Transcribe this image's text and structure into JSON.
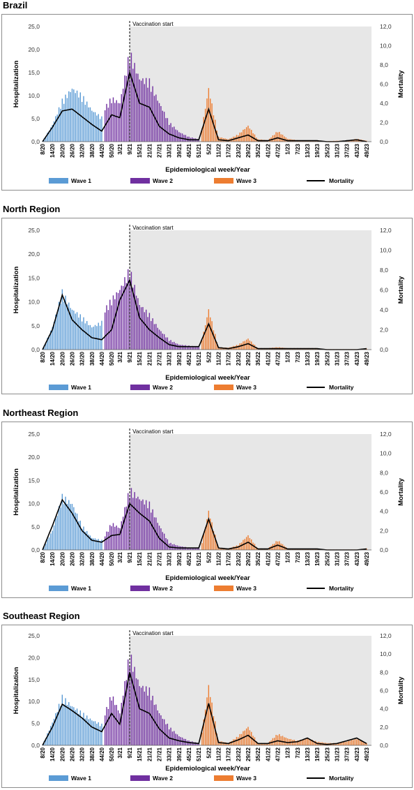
{
  "colors": {
    "wave1": "#5b9bd5",
    "wave2": "#7030a0",
    "wave3": "#ed7d31",
    "mortality": "#000000",
    "shade": "#e7e7e7"
  },
  "common": {
    "xlabel": "Epidemiological week/Year",
    "ylabel_left": "Hospitalization",
    "ylabel_right": "Mortality",
    "annotation": "Vaccination start",
    "legend": [
      "Wave 1",
      "Wave 2",
      "Wave 3",
      "Mortality"
    ],
    "x_ticks": [
      "8/20",
      "14/20",
      "20/20",
      "26/20",
      "32/20",
      "38/20",
      "44/20",
      "50/20",
      "3/21",
      "9/21",
      "15/21",
      "21/21",
      "27/21",
      "33/21",
      "39/21",
      "45/21",
      "51/21",
      "5/22",
      "11/22",
      "17/22",
      "23/22",
      "29/22",
      "35/22",
      "41/22",
      "47/22",
      "1/23",
      "7/23",
      "13/23",
      "19/23",
      "25/23",
      "31/23",
      "37/23",
      "43/23",
      "49/23"
    ],
    "y_ticks_left": [
      "0,0",
      "5,0",
      "10,0",
      "15,0",
      "20,0",
      "25,0"
    ],
    "y_ticks_right": [
      "0,0",
      "2,0",
      "4,0",
      "6,0",
      "8,0",
      "10,0",
      "12,0"
    ]
  },
  "chart_data": [
    {
      "type": "bar",
      "title": "Brazil",
      "xlabel": "Epidemiological week/Year",
      "ylabel": "Hospitalization",
      "ylabel_right": "Mortality",
      "ylim": [
        0,
        25
      ],
      "ylim_right": [
        0,
        12
      ],
      "x_range": [
        "8/20",
        "52/23"
      ],
      "vaccination_start": "9/21",
      "series": [
        {
          "name": "Wave 1",
          "type": "bar",
          "weeks": [
            "8/20",
            "14/20",
            "20/20",
            "26/20",
            "32/20",
            "38/20",
            "44/20"
          ],
          "values": [
            0.1,
            3.5,
            8.5,
            11.0,
            9.5,
            6.5,
            5.0
          ]
        },
        {
          "name": "Wave 2",
          "type": "bar",
          "weeks": [
            "46/20",
            "50/20",
            "3/21",
            "9/21",
            "15/21",
            "21/21",
            "27/21",
            "33/21",
            "39/21",
            "45/21",
            "51/21"
          ],
          "values": [
            7.0,
            9.0,
            8.0,
            18.5,
            13.0,
            12.5,
            8.0,
            4.0,
            2.0,
            1.0,
            0.5
          ]
        },
        {
          "name": "Wave 3",
          "type": "bar",
          "weeks": [
            "1/22",
            "5/22",
            "11/22",
            "17/22",
            "23/22",
            "29/22",
            "35/22",
            "41/22",
            "47/22",
            "1/23",
            "7/23",
            "13/23",
            "19/23",
            "25/23",
            "31/23",
            "37/23",
            "43/23",
            "49/23"
          ],
          "values": [
            3.0,
            11.0,
            1.0,
            0.5,
            1.5,
            3.3,
            0.5,
            0.3,
            2.2,
            0.6,
            0.3,
            0.2,
            0.3,
            0.1,
            0.2,
            0.2,
            0.6,
            0.2
          ]
        },
        {
          "name": "Mortality",
          "type": "line",
          "weeks": [
            "8/20",
            "14/20",
            "20/20",
            "26/20",
            "32/20",
            "38/20",
            "44/20",
            "50/20",
            "3/21",
            "9/21",
            "15/21",
            "21/21",
            "27/21",
            "33/21",
            "39/21",
            "45/21",
            "51/21",
            "5/22",
            "11/22",
            "17/22",
            "23/22",
            "29/22",
            "35/22",
            "41/22",
            "47/22",
            "1/23",
            "7/23",
            "13/23",
            "19/23",
            "25/23",
            "31/23",
            "37/23",
            "43/23",
            "49/23"
          ],
          "values": [
            0.0,
            1.5,
            3.2,
            3.4,
            2.6,
            1.8,
            1.1,
            2.8,
            2.5,
            7.2,
            4.0,
            3.6,
            1.6,
            0.8,
            0.4,
            0.2,
            0.2,
            3.4,
            0.2,
            0.1,
            0.4,
            0.7,
            0.1,
            0.1,
            0.4,
            0.1,
            0.1,
            0.1,
            0.1,
            0.0,
            0.0,
            0.1,
            0.2,
            0.0
          ]
        }
      ]
    },
    {
      "type": "bar",
      "title": "North Region",
      "xlabel": "Epidemiological week/Year",
      "ylabel": "Hospitalization",
      "ylabel_right": "Mortality",
      "ylim": [
        0,
        25
      ],
      "ylim_right": [
        0,
        12
      ],
      "x_range": [
        "8/20",
        "52/23"
      ],
      "vaccination_start": "9/21",
      "series": [
        {
          "name": "Wave 1",
          "type": "bar",
          "weeks": [
            "8/20",
            "14/20",
            "20/20",
            "26/20",
            "32/20",
            "38/20",
            "44/20"
          ],
          "values": [
            0.1,
            4.5,
            11.5,
            8.0,
            6.5,
            4.5,
            5.5
          ]
        },
        {
          "name": "Wave 2",
          "type": "bar",
          "weeks": [
            "46/20",
            "50/20",
            "3/21",
            "9/21",
            "15/21",
            "21/21",
            "27/21",
            "33/21",
            "39/21",
            "45/21",
            "51/21"
          ],
          "values": [
            8.0,
            10.0,
            12.0,
            16.0,
            9.0,
            7.0,
            4.0,
            2.0,
            1.0,
            0.8,
            0.5
          ]
        },
        {
          "name": "Wave 3",
          "type": "bar",
          "weeks": [
            "1/22",
            "5/22",
            "11/22",
            "17/22",
            "23/22",
            "29/22",
            "35/22",
            "41/22",
            "47/22",
            "1/23",
            "7/23",
            "13/23",
            "19/23",
            "25/23",
            "31/23",
            "37/23",
            "43/23",
            "49/23"
          ],
          "values": [
            2.0,
            8.0,
            0.5,
            0.4,
            1.0,
            2.2,
            0.3,
            0.3,
            0.5,
            0.3,
            0.3,
            0.3,
            0.3,
            0.1,
            0.1,
            0.1,
            0.1,
            0.2
          ]
        },
        {
          "name": "Mortality",
          "type": "line",
          "weeks": [
            "8/20",
            "14/20",
            "20/20",
            "26/20",
            "32/20",
            "38/20",
            "44/20",
            "50/20",
            "3/21",
            "9/21",
            "15/21",
            "21/21",
            "27/21",
            "33/21",
            "39/21",
            "45/21",
            "51/21",
            "5/22",
            "11/22",
            "17/22",
            "23/22",
            "29/22",
            "35/22",
            "41/22",
            "47/22",
            "1/23",
            "7/23",
            "13/23",
            "19/23",
            "25/23",
            "31/23",
            "37/23",
            "43/23",
            "49/23"
          ],
          "values": [
            0.0,
            2.0,
            5.5,
            3.0,
            2.0,
            1.2,
            1.0,
            2.0,
            5.0,
            7.0,
            3.2,
            2.0,
            1.2,
            0.5,
            0.3,
            0.3,
            0.3,
            2.6,
            0.2,
            0.1,
            0.3,
            0.6,
            0.1,
            0.1,
            0.1,
            0.1,
            0.1,
            0.1,
            0.1,
            0.0,
            0.0,
            0.0,
            0.0,
            0.1
          ]
        }
      ]
    },
    {
      "type": "bar",
      "title": "Northeast Region",
      "xlabel": "Epidemiological week/Year",
      "ylabel": "Hospitalization",
      "ylabel_right": "Mortality",
      "ylim": [
        0,
        25
      ],
      "ylim_right": [
        0,
        12
      ],
      "x_range": [
        "8/20",
        "52/23"
      ],
      "vaccination_start": "9/21",
      "series": [
        {
          "name": "Wave 1",
          "type": "bar",
          "weeks": [
            "8/20",
            "14/20",
            "20/20",
            "26/20",
            "32/20",
            "38/20",
            "44/20"
          ],
          "values": [
            0.1,
            4.0,
            11.0,
            9.5,
            5.0,
            2.5,
            2.0
          ]
        },
        {
          "name": "Wave 2",
          "type": "bar",
          "weeks": [
            "46/20",
            "50/20",
            "3/21",
            "9/21",
            "15/21",
            "21/21",
            "27/21",
            "33/21",
            "39/21",
            "45/21",
            "51/21"
          ],
          "values": [
            3.0,
            5.5,
            4.5,
            12.5,
            10.5,
            9.5,
            5.0,
            1.5,
            0.8,
            0.5,
            0.3
          ]
        },
        {
          "name": "Wave 3",
          "type": "bar",
          "weeks": [
            "1/22",
            "5/22",
            "11/22",
            "17/22",
            "23/22",
            "29/22",
            "35/22",
            "41/22",
            "47/22",
            "1/23",
            "7/23",
            "13/23",
            "19/23",
            "25/23",
            "31/23",
            "37/23",
            "43/23",
            "49/23"
          ],
          "values": [
            1.5,
            8.0,
            0.5,
            0.3,
            1.0,
            3.0,
            0.3,
            0.3,
            2.0,
            0.3,
            0.2,
            0.2,
            0.3,
            0.1,
            0.1,
            0.1,
            0.1,
            0.3
          ]
        },
        {
          "name": "Mortality",
          "type": "line",
          "weeks": [
            "8/20",
            "14/20",
            "20/20",
            "26/20",
            "32/20",
            "38/20",
            "44/20",
            "50/20",
            "3/21",
            "9/21",
            "15/21",
            "21/21",
            "27/21",
            "33/21",
            "39/21",
            "45/21",
            "51/21",
            "5/22",
            "11/22",
            "17/22",
            "23/22",
            "29/22",
            "35/22",
            "41/22",
            "47/22",
            "1/23",
            "7/23",
            "13/23",
            "19/23",
            "25/23",
            "31/23",
            "37/23",
            "43/23",
            "49/23"
          ],
          "values": [
            0.0,
            2.5,
            5.2,
            3.8,
            2.0,
            1.0,
            0.8,
            1.5,
            1.6,
            4.8,
            3.8,
            3.0,
            1.2,
            0.3,
            0.2,
            0.2,
            0.2,
            3.2,
            0.2,
            0.1,
            0.3,
            0.8,
            0.1,
            0.1,
            0.5,
            0.1,
            0.1,
            0.1,
            0.1,
            0.0,
            0.0,
            0.0,
            0.0,
            0.1
          ]
        }
      ]
    },
    {
      "type": "bar",
      "title": "Southeast Region",
      "xlabel": "Epidemiological week/Year",
      "ylabel": "Hospitalization",
      "ylabel_right": "Mortality",
      "ylim": [
        0,
        25
      ],
      "ylim_right": [
        0,
        12
      ],
      "x_range": [
        "8/20",
        "52/23"
      ],
      "vaccination_start": "9/21",
      "series": [
        {
          "name": "Wave 1",
          "type": "bar",
          "weeks": [
            "8/20",
            "14/20",
            "20/20",
            "26/20",
            "32/20",
            "38/20",
            "44/20"
          ],
          "values": [
            0.1,
            5.0,
            10.5,
            8.5,
            7.0,
            5.5,
            4.5
          ]
        },
        {
          "name": "Wave 2",
          "type": "bar",
          "weeks": [
            "46/20",
            "50/20",
            "3/21",
            "9/21",
            "15/21",
            "21/21",
            "27/21",
            "33/21",
            "39/21",
            "45/21",
            "51/21"
          ],
          "values": [
            7.0,
            11.0,
            7.0,
            20.0,
            13.0,
            12.0,
            7.0,
            4.0,
            2.0,
            1.0,
            0.5
          ]
        },
        {
          "name": "Wave 3",
          "type": "bar",
          "weeks": [
            "1/22",
            "5/22",
            "11/22",
            "17/22",
            "23/22",
            "29/22",
            "35/22",
            "41/22",
            "47/22",
            "1/23",
            "7/23",
            "13/23",
            "19/23",
            "25/23",
            "31/23",
            "37/23",
            "43/23",
            "49/23"
          ],
          "values": [
            3.0,
            13.0,
            1.0,
            0.5,
            2.0,
            4.0,
            0.5,
            0.5,
            2.5,
            1.5,
            1.0,
            1.5,
            0.8,
            0.5,
            0.5,
            0.8,
            1.5,
            0.5
          ]
        },
        {
          "name": "Mortality",
          "type": "line",
          "weeks": [
            "8/20",
            "14/20",
            "20/20",
            "26/20",
            "32/20",
            "38/20",
            "44/20",
            "50/20",
            "3/21",
            "9/21",
            "15/21",
            "21/21",
            "27/21",
            "33/21",
            "39/21",
            "45/21",
            "51/21",
            "5/22",
            "11/22",
            "17/22",
            "23/22",
            "29/22",
            "35/22",
            "41/22",
            "47/22",
            "1/23",
            "7/23",
            "13/23",
            "19/23",
            "25/23",
            "31/23",
            "37/23",
            "43/23",
            "49/23"
          ],
          "values": [
            0.0,
            2.0,
            4.5,
            3.8,
            3.0,
            2.0,
            1.5,
            3.5,
            2.3,
            8.0,
            4.0,
            3.5,
            1.8,
            0.8,
            0.5,
            0.3,
            0.2,
            4.6,
            0.3,
            0.2,
            0.6,
            1.1,
            0.2,
            0.2,
            0.5,
            0.3,
            0.4,
            0.8,
            0.2,
            0.1,
            0.2,
            0.5,
            0.8,
            0.2
          ]
        }
      ]
    }
  ]
}
